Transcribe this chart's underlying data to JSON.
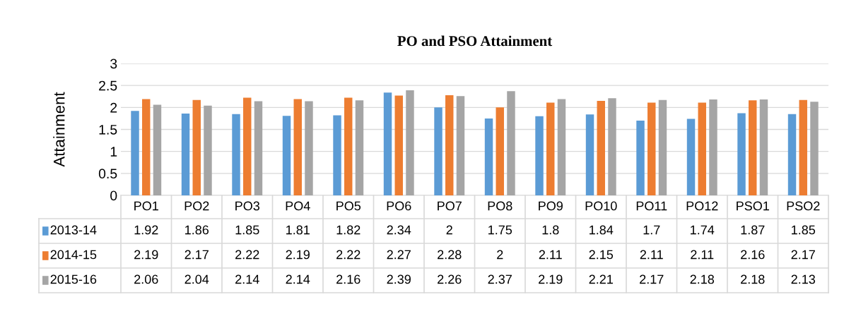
{
  "chart_data": {
    "type": "bar",
    "title": "PO and PSO Attainment",
    "ylabel": "Attainment",
    "categories": [
      "PO1",
      "PO2",
      "PO3",
      "PO4",
      "PO5",
      "PO6",
      "PO7",
      "PO8",
      "PO9",
      "PO10",
      "PO11",
      "PO12",
      "PSO1",
      "PSO2"
    ],
    "series": [
      {
        "name": "2013-14",
        "color": "#5b9bd5",
        "values": [
          1.92,
          1.86,
          1.85,
          1.81,
          1.82,
          2.34,
          2,
          1.75,
          1.8,
          1.84,
          1.7,
          1.74,
          1.87,
          1.85
        ]
      },
      {
        "name": "2014-15",
        "color": "#ed7d31",
        "values": [
          2.19,
          2.17,
          2.22,
          2.19,
          2.22,
          2.27,
          2.28,
          2,
          2.11,
          2.15,
          2.11,
          2.11,
          2.16,
          2.17
        ]
      },
      {
        "name": "2015-16",
        "color": "#a5a5a5",
        "values": [
          2.06,
          2.04,
          2.14,
          2.14,
          2.16,
          2.39,
          2.26,
          2.37,
          2.19,
          2.21,
          2.17,
          2.18,
          2.18,
          2.13
        ]
      }
    ],
    "ylim": [
      0,
      3
    ],
    "yticks": [
      0,
      0.5,
      1,
      1.5,
      2,
      2.5,
      3
    ],
    "grid": "y",
    "legend": "bottom",
    "data_labels": true
  }
}
